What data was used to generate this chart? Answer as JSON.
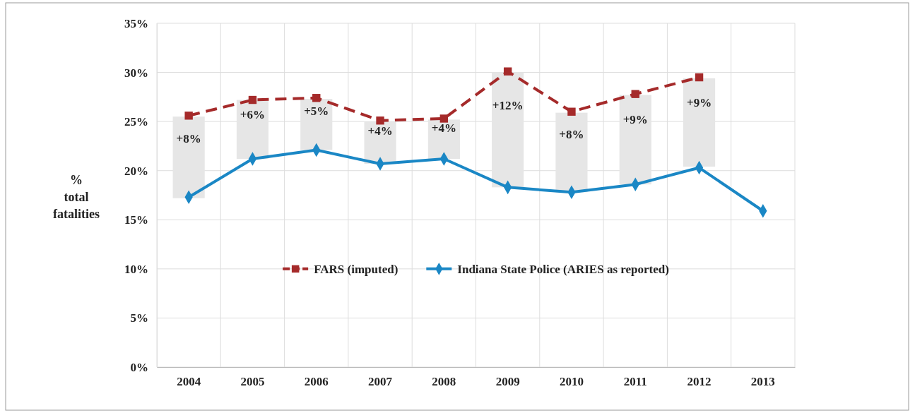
{
  "chart_data": {
    "type": "line",
    "categories": [
      "2004",
      "2005",
      "2006",
      "2007",
      "2008",
      "2009",
      "2010",
      "2011",
      "2012",
      "2013"
    ],
    "ylabel": "% total fatalities",
    "ylim": [
      0,
      35
    ],
    "yticks": [
      {
        "value": 0,
        "label": "0%"
      },
      {
        "value": 5,
        "label": "5%"
      },
      {
        "value": 10,
        "label": "10%"
      },
      {
        "value": 15,
        "label": "15%"
      },
      {
        "value": 20,
        "label": "20%"
      },
      {
        "value": 25,
        "label": "25%"
      },
      {
        "value": 30,
        "label": "30%"
      },
      {
        "value": 35,
        "label": "35%"
      }
    ],
    "grid": true,
    "legend": "bottom",
    "series": [
      {
        "type": "bar",
        "color": "#e6e6e6",
        "base": [
          17.2,
          21.2,
          22.1,
          20.7,
          21.2,
          18.3,
          17.8,
          18.6,
          20.4,
          null
        ],
        "values": [
          8.3,
          6.0,
          5.2,
          4.3,
          4.0,
          11.7,
          8.1,
          9.1,
          9.0,
          null
        ],
        "value_labels": [
          "+8%",
          "+6%",
          "+5%",
          "+4%",
          "+4%",
          "+12%",
          "+8%",
          "+9%",
          "+9%",
          null
        ]
      },
      {
        "name": "FARS (imputed)",
        "color": "#a52a2a",
        "marker": "square",
        "line_style": "dashed",
        "values": [
          25.6,
          27.2,
          27.4,
          25.1,
          25.3,
          30.1,
          26.0,
          27.8,
          29.5,
          null
        ]
      },
      {
        "name": "Indiana State Police (ARIES as reported)",
        "color": "#1a87c5",
        "marker": "diamond",
        "line_style": "solid",
        "values": [
          17.3,
          21.2,
          22.1,
          20.7,
          21.2,
          18.3,
          17.8,
          18.6,
          20.3,
          15.9
        ]
      }
    ]
  }
}
